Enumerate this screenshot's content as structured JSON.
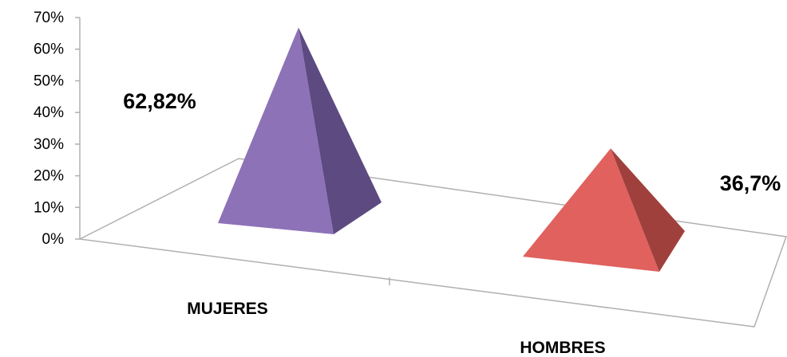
{
  "chart_data": {
    "type": "bar",
    "style": "3d-pyramid",
    "categories": [
      "MUJERES",
      "HOMBRES"
    ],
    "values": [
      0.6282,
      0.367
    ],
    "data_labels": [
      "62,82%",
      "36,7%"
    ],
    "y_ticks": [
      "0%",
      "10%",
      "20%",
      "30%",
      "40%",
      "50%",
      "60%",
      "70%"
    ],
    "ylim": [
      0,
      0.7
    ],
    "grid": false,
    "legend": "none",
    "colors": {
      "MUJERES": {
        "front": "#8E72B8",
        "side": "#5C4A80"
      },
      "HOMBRES": {
        "front": "#E0615E",
        "side": "#A0403D"
      }
    }
  }
}
